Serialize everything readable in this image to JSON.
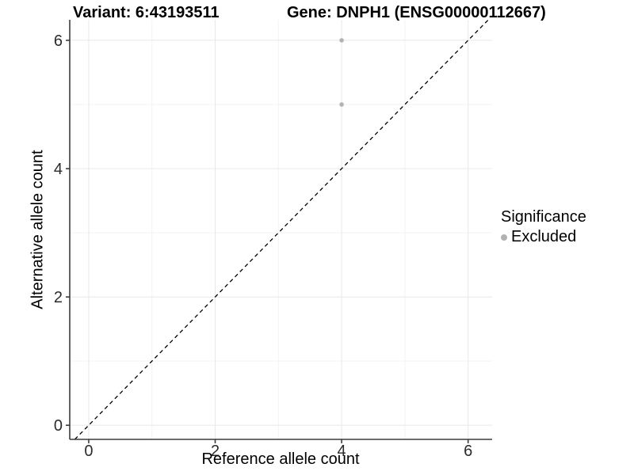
{
  "titles": {
    "variant": "Variant: 6:43193511",
    "gene": "Gene: DNPH1 (ENSG00000112667)"
  },
  "axes": {
    "x_label": "Reference allele count",
    "y_label": "Alternative allele count"
  },
  "legend": {
    "title": "Significance",
    "items": [
      {
        "label": "Excluded",
        "color": "#b3b3b3"
      }
    ]
  },
  "chart_data": {
    "type": "scatter",
    "title_left": "Variant: 6:43193511",
    "title_right": "Gene: DNPH1 (ENSG00000112667)",
    "xlabel": "Reference allele count",
    "ylabel": "Alternative allele count",
    "points": [
      {
        "x": 4,
        "y": 6,
        "series": "Excluded"
      },
      {
        "x": 4,
        "y": 5,
        "series": "Excluded"
      }
    ],
    "series": [
      {
        "name": "Excluded",
        "color": "#b3b3b3"
      }
    ],
    "identity_line": {
      "style": "dashed",
      "from": [
        -0.22,
        -0.22
      ],
      "to": [
        6.32,
        6.32
      ],
      "color": "#000000"
    },
    "xlim": [
      -0.3,
      6.38
    ],
    "ylim": [
      -0.22,
      6.32
    ],
    "x_ticks": [
      0,
      2,
      4,
      6
    ],
    "y_ticks": [
      0,
      2,
      4,
      6
    ],
    "x_minor_ticks": [
      1,
      3,
      5
    ],
    "y_minor_ticks": [
      1,
      3,
      5
    ],
    "grid": true,
    "legend_title": "Significance",
    "legend_position": "right",
    "colors": {
      "grid_major": "#e8e8e8",
      "grid_minor": "#f3f3f3",
      "axis_line": "#3c3c3c",
      "tick_label": "#2b2b2b",
      "point": "#b3b3b3",
      "background": "#ffffff"
    }
  }
}
